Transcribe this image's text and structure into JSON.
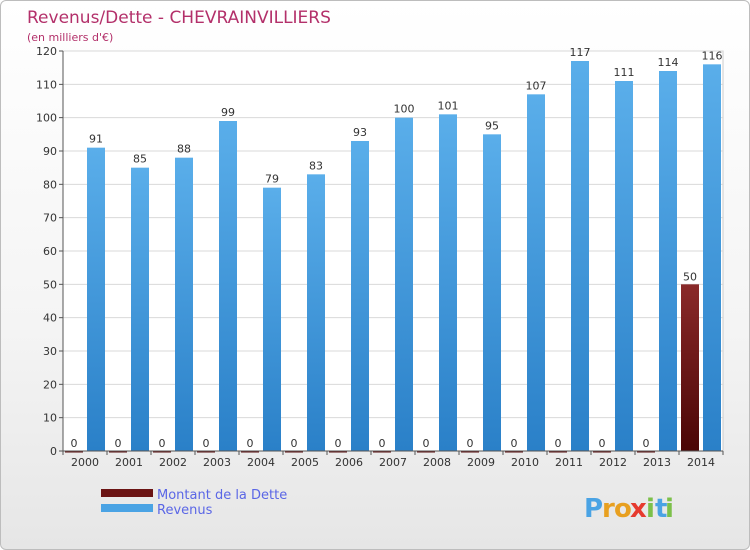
{
  "chart_data": {
    "type": "bar",
    "title": "Revenus/Dette - CHEVRAINVILLIERS",
    "subtitle": "(en milliers d'€)",
    "categories": [
      "2000",
      "2001",
      "2002",
      "2003",
      "2004",
      "2005",
      "2006",
      "2007",
      "2008",
      "2009",
      "2010",
      "2011",
      "2012",
      "2013",
      "2014"
    ],
    "series": [
      {
        "name": "Montant de la Dette",
        "values": [
          0,
          0,
          0,
          0,
          0,
          0,
          0,
          0,
          0,
          0,
          0,
          0,
          0,
          0,
          50
        ],
        "color": "#6b1414"
      },
      {
        "name": "Revenus",
        "values": [
          91,
          85,
          88,
          99,
          79,
          83,
          93,
          100,
          101,
          95,
          107,
          117,
          111,
          114,
          116
        ],
        "color": "#4aa3e4"
      }
    ],
    "ylim": [
      0,
      120
    ],
    "yticks": [
      0,
      10,
      20,
      30,
      40,
      50,
      60,
      70,
      80,
      90,
      100,
      110,
      120
    ],
    "grid": true,
    "legend_position": "bottom-left"
  },
  "logo": {
    "letters": [
      "P",
      "r",
      "o",
      "x",
      "i",
      "t",
      "i"
    ],
    "colors": [
      "#4aa3e4",
      "#e8a020",
      "#e8a020",
      "#e63a2e",
      "#7cc04a",
      "#4aa3e4",
      "#7cc04a"
    ]
  }
}
